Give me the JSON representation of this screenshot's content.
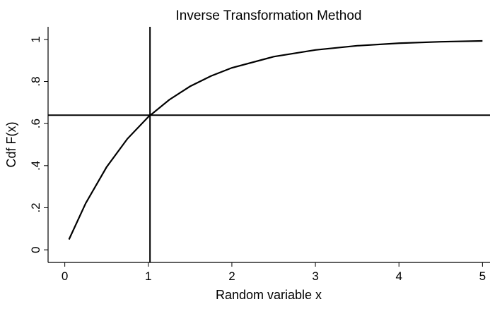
{
  "chart_data": {
    "type": "line",
    "title": "Inverse Transformation Method",
    "x_label": "Random variable x",
    "y_label": "Cdf  F(x)",
    "x": [
      0.05,
      0.25,
      0.5,
      0.75,
      1,
      1.25,
      1.5,
      1.75,
      2,
      2.5,
      3,
      3.5,
      4,
      4.5,
      5
    ],
    "series": [
      {
        "color": "#000000",
        "values": [
          0.049,
          0.221,
          0.393,
          0.528,
          0.632,
          0.713,
          0.777,
          0.826,
          0.865,
          0.918,
          0.95,
          0.97,
          0.982,
          0.989,
          0.993
        ]
      }
    ],
    "vline": 1.02,
    "hline": 0.64,
    "xlim": [
      -0.2,
      5.09
    ],
    "ylim": [
      -0.06,
      1.06
    ],
    "xticks": [
      0,
      1,
      2,
      3,
      4,
      5
    ],
    "yticks": [
      0,
      {
        "value": 0.2,
        "label": ".2"
      },
      {
        "value": 0.4,
        "label": ".4"
      },
      {
        "value": 0.6,
        "label": ".6"
      },
      {
        "value": 0.8,
        "label": ".8"
      },
      1
    ]
  }
}
